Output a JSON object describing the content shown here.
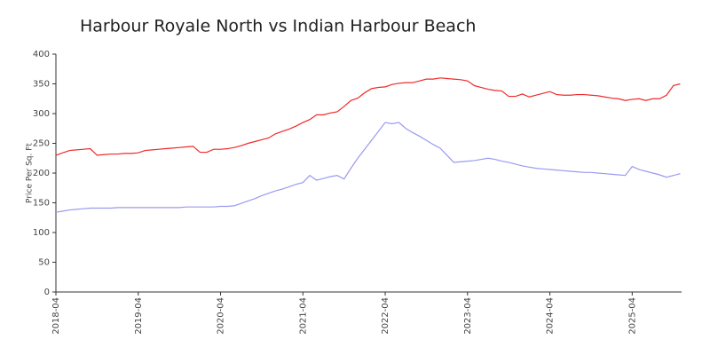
{
  "chart_data": {
    "type": "line",
    "title": "Harbour Royale North vs Indian Harbour Beach",
    "y_label": "Price Per Sq. Ft",
    "categories": [
      "2018-04",
      "2018-05",
      "2018-06",
      "2018-07",
      "2018-08",
      "2018-09",
      "2018-10",
      "2018-11",
      "2018-12",
      "2019-01",
      "2019-02",
      "2019-03",
      "2019-04",
      "2019-05",
      "2019-06",
      "2019-07",
      "2019-08",
      "2019-09",
      "2019-10",
      "2019-11",
      "2019-12",
      "2020-01",
      "2020-02",
      "2020-03",
      "2020-04",
      "2020-05",
      "2020-06",
      "2020-07",
      "2020-08",
      "2020-09",
      "2020-10",
      "2020-11",
      "2020-12",
      "2021-01",
      "2021-02",
      "2021-03",
      "2021-04",
      "2021-05",
      "2021-06",
      "2021-07",
      "2021-08",
      "2021-09",
      "2021-10",
      "2021-11",
      "2021-12",
      "2022-01",
      "2022-02",
      "2022-03",
      "2022-04",
      "2022-05",
      "2022-06",
      "2022-07",
      "2022-08",
      "2022-09",
      "2022-10",
      "2022-11",
      "2022-12",
      "2023-01",
      "2023-02",
      "2023-03",
      "2023-04",
      "2023-05",
      "2023-06",
      "2023-07",
      "2023-08",
      "2023-09",
      "2023-10",
      "2023-11",
      "2023-12",
      "2024-01",
      "2024-02",
      "2024-03",
      "2024-04",
      "2024-05",
      "2024-06",
      "2024-07",
      "2024-08",
      "2024-09",
      "2024-10",
      "2024-11",
      "2024-12",
      "2025-01",
      "2025-02",
      "2025-03",
      "2025-04",
      "2025-05",
      "2025-06",
      "2025-07",
      "2025-08",
      "2025-09",
      "2025-10",
      "2025-11"
    ],
    "series": [
      {
        "name": "Harbour Royale North",
        "color": "#ee2a2a",
        "values": [
          230,
          234,
          238,
          239,
          240,
          241,
          230,
          231,
          232,
          232,
          233,
          233,
          234,
          238,
          239,
          240,
          241,
          242,
          243,
          244,
          245,
          235,
          235,
          240,
          240,
          241,
          243,
          246,
          250,
          253,
          256,
          259,
          266,
          270,
          274,
          279,
          285,
          290,
          298,
          298,
          301,
          303,
          312,
          322,
          326,
          335,
          342,
          344,
          345,
          349,
          351,
          352,
          352,
          355,
          358,
          358,
          360,
          359,
          358,
          357,
          355,
          347,
          344,
          341,
          339,
          338,
          329,
          329,
          333,
          328,
          331,
          334,
          337,
          332,
          331,
          331,
          332,
          332,
          331,
          330,
          328,
          326,
          325,
          322,
          324,
          325,
          322,
          325,
          325,
          331,
          347,
          350
        ]
      },
      {
        "name": "Indian Harbour Beach",
        "color": "#9a9af0",
        "values": [
          134,
          136,
          138,
          139,
          140,
          141,
          141,
          141,
          141,
          142,
          142,
          142,
          142,
          142,
          142,
          142,
          142,
          142,
          142,
          143,
          143,
          143,
          143,
          143,
          144,
          144,
          145,
          149,
          153,
          157,
          162,
          166,
          170,
          173,
          177,
          181,
          184,
          196,
          188,
          191,
          194,
          196,
          190,
          208,
          225,
          240,
          255,
          270,
          285,
          283,
          285,
          275,
          268,
          262,
          255,
          248,
          242,
          230,
          218,
          219,
          220,
          221,
          223,
          225,
          223,
          220,
          218,
          215,
          212,
          210,
          208,
          207,
          206,
          205,
          204,
          203,
          202,
          201,
          201,
          200,
          199,
          198,
          197,
          196,
          211,
          206,
          203,
          200,
          197,
          193,
          196,
          199
        ]
      }
    ],
    "xticks": [
      "2018-04",
      "2019-04",
      "2020-04",
      "2021-04",
      "2022-04",
      "2023-04",
      "2024-04",
      "2025-04"
    ],
    "ylim": [
      0,
      400
    ],
    "yticks": [
      0,
      50,
      100,
      150,
      200,
      250,
      300,
      350,
      400
    ],
    "grid": false
  }
}
